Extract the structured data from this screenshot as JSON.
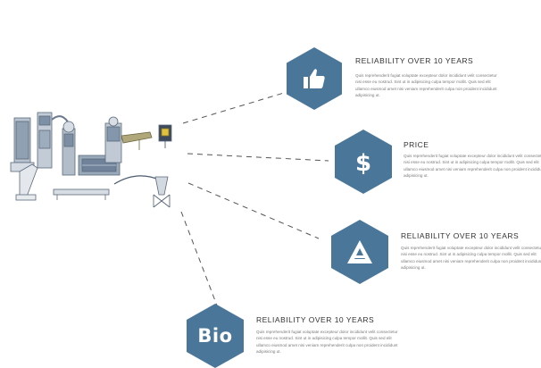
{
  "colors": {
    "hex_fill": "#4a7799",
    "connector": "#555555"
  },
  "features": [
    {
      "icon": "thumbs-up-icon",
      "title": "RELIABILITY OVER 10 YEARS",
      "body": "Quis reprehenderit fugiat voluptate excepteur dolor incididunt velit consectetur nisi esse eu nostrud. Sint ut in adipisicing culpa tempor mollit. Quis sed elit ullamco eiusmod amet nisi veniam reprehenderit culpa non proident incididunt adipisicing ut."
    },
    {
      "icon": "dollar-icon",
      "title": "PRICE",
      "body": "Quis reprehenderit fugiat voluptate excepteur dolor incididunt velit consectetur nisi esse eu nostrud. Sint ut in adipisicing culpa tempor mollit. Quis sed elit ullamco eiusmod amet nisi veniam reprehenderit culpa non proident incididunt adipisicing ut."
    },
    {
      "icon": "triangle-logo-icon",
      "title": "RELIABILITY OVER 10 YEARS",
      "body": "Quis reprehenderit fugiat voluptate excepteur dolor incididunt velit consectetur nisi esse eu nostrud. Sint ut in adipisicing culpa tempor mollit. Quis sed elit ullamco eiusmod amet nisi veniam reprehenderit culpa non proident incididunt adipisicing ut."
    },
    {
      "icon": "bio-icon",
      "icon_text": "Bio",
      "title": "RELIABILITY OVER 10 YEARS",
      "body": "Quis reprehenderit fugiat voluptate excepteur dolor incididunt velit consectetur nisi esse eu nostrud. Sint ut in adipisicing culpa tempor mollit. Quis sed elit ullamco eiusmod amet nisi veniam reprehenderit culpa non proident incididunt adipisicing ut."
    }
  ]
}
